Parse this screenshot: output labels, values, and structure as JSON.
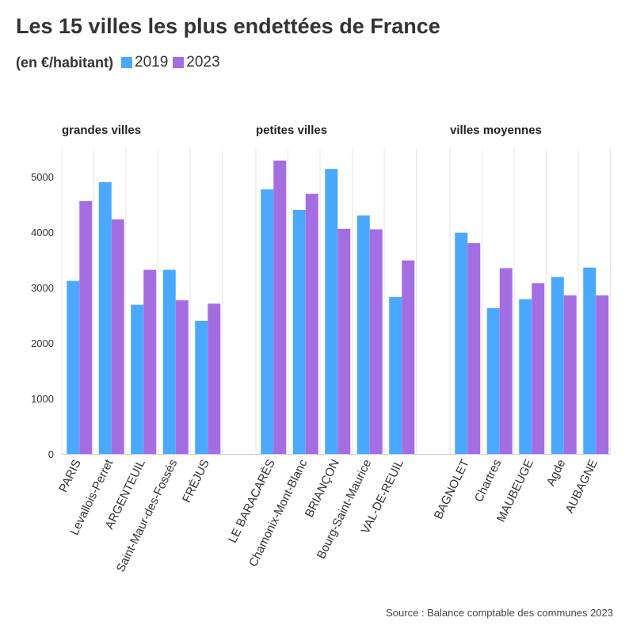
{
  "title": "Les 15 villes les plus endettées de France",
  "unit_label": "(en €/habitant)",
  "legend": [
    {
      "label": "2019",
      "color": "#4aa8ff"
    },
    {
      "label": "2023",
      "color": "#a56de2"
    }
  ],
  "source": "Source : Balance comptable des communes 2023",
  "chart_data": {
    "type": "bar",
    "ylim": [
      0,
      5500
    ],
    "yticks": [
      0,
      1000,
      2000,
      3000,
      4000,
      5000
    ],
    "grid": true,
    "legend_position": "top-left",
    "series_names": [
      "2019",
      "2023"
    ],
    "panels": [
      {
        "title": "grandes villes",
        "categories": [
          "PARIS",
          "Levallois-Perret",
          "ARGENTEUIL",
          "Saint-Maur-des-Fossés",
          "FRÉJUS"
        ],
        "series": [
          {
            "name": "2019",
            "values": [
              3120,
              4900,
              2690,
              3320,
              2400
            ]
          },
          {
            "name": "2023",
            "values": [
              4560,
              4230,
              3320,
              2770,
              2710
            ]
          }
        ]
      },
      {
        "title": "petites villes",
        "categories": [
          "LE BARACARÈS",
          "Chamonix-Mont-Blanc",
          "BRIANÇON",
          "Bourg-Saint-Maurice",
          "VAL-DE-REUIL"
        ],
        "series": [
          {
            "name": "2019",
            "values": [
              4770,
              4400,
              5140,
              4300,
              2830
            ]
          },
          {
            "name": "2023",
            "values": [
              5290,
              4690,
              4060,
              4050,
              3490
            ]
          }
        ]
      },
      {
        "title": "villes moyennes",
        "categories": [
          "BAGNOLET",
          "Chartres",
          "MAUBEUGE",
          "Agde",
          "AUBAGNE"
        ],
        "series": [
          {
            "name": "2019",
            "values": [
              3990,
              2630,
              2790,
              3190,
              3360
            ]
          },
          {
            "name": "2023",
            "values": [
              3800,
              3350,
              3080,
              2860,
              2860
            ]
          }
        ]
      }
    ]
  }
}
